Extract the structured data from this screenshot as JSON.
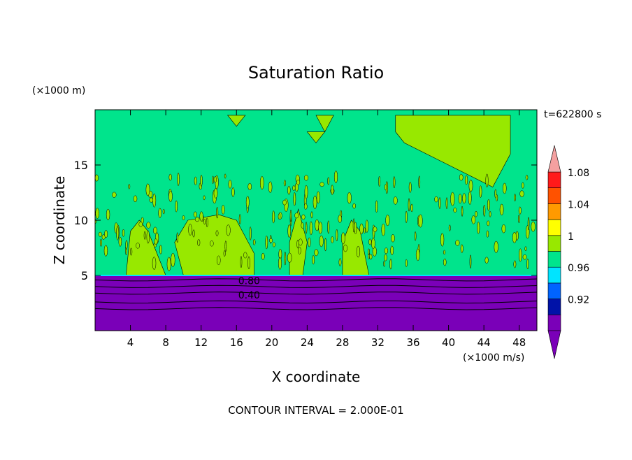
{
  "chart_data": {
    "type": "heatmap",
    "title": "Saturation Ratio",
    "xlabel": "X coordinate",
    "ylabel": "Z coordinate",
    "x_unit": "(×1000 m/s)",
    "y_unit": "(×1000 m)",
    "time_label": "t=622800 s",
    "contour_interval_label": "CONTOUR INTERVAL = 2.000E-01",
    "xlim": [
      0,
      50
    ],
    "ylim": [
      0,
      20
    ],
    "x_ticks": [
      4,
      8,
      12,
      16,
      20,
      24,
      28,
      32,
      36,
      40,
      44,
      48
    ],
    "y_ticks": [
      5,
      10,
      15
    ],
    "contour_labels": [
      "0.80",
      "0.40"
    ],
    "colorbar": {
      "levels": [
        {
          "value": null,
          "color": "#7a00b8"
        },
        {
          "value": "0.92",
          "color": "#0012a8"
        },
        {
          "value": null,
          "color": "#0064ff"
        },
        {
          "value": "0.96",
          "color": "#00e4ff"
        },
        {
          "value": null,
          "color": "#00e48c"
        },
        {
          "value": "1",
          "color": "#98e800"
        },
        {
          "value": null,
          "color": "#ffff00"
        },
        {
          "value": "1.04",
          "color": "#ff9a00"
        },
        {
          "value": null,
          "color": "#ff5200"
        },
        {
          "value": "1.08",
          "color": "#ff1a1a"
        }
      ],
      "extend_low_color": "#7a00b8",
      "extend_high_color": "#f4a0a0"
    },
    "fields": {
      "background_color": "#00e48c",
      "moist_layer_color": "#98e800",
      "dry_layer_color": "#7a00b8",
      "dry_layer_top_z": 5
    }
  }
}
